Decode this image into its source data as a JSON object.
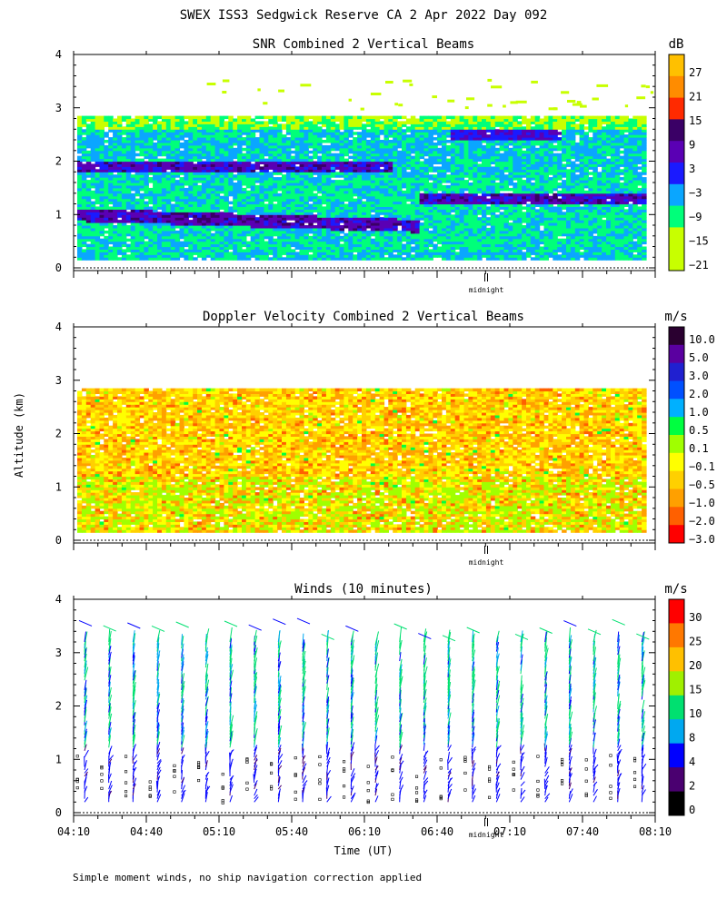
{
  "header": {
    "title": "SWEX ISS3 Sedgwick Reserve CA   2 Apr 2022 Day 092"
  },
  "y_axis_label": "Altitude (km)",
  "x_axis_label": "Time (UT)",
  "footnote": "Simple moment winds, no ship navigation correction applied",
  "midnight_label": "midnight",
  "colors": {
    "dotted_ground": "#000000",
    "frame": "#000000"
  },
  "chart_data": [
    {
      "type": "heatmap",
      "title": "SNR Combined 2 Vertical Beams",
      "ylim": [
        0,
        4
      ],
      "yticks": [
        "0",
        "1",
        "2",
        "3",
        "4"
      ],
      "xlim": [
        "04:10",
        "08:10"
      ],
      "colorbar": {
        "unit": "dB",
        "labels": [
          "27",
          "21",
          "15",
          "9",
          "3",
          "−3",
          "−9",
          "−15",
          "−21"
        ],
        "colors": [
          "#ffc000",
          "#ff8c00",
          "#ff2a00",
          "#3a0066",
          "#5a00b4",
          "#1a1aff",
          "#0aa6ff",
          "#00ff7a",
          "#c8ff00",
          "#c8ff00"
        ]
      },
      "features": {
        "echo_top_km": 2.85,
        "echo_bottom_km": 0.15,
        "strong_layers_km": [
          1.0,
          1.9,
          2.5
        ]
      }
    },
    {
      "type": "heatmap",
      "title": "Doppler Velocity Combined 2 Vertical Beams",
      "ylim": [
        0,
        4
      ],
      "yticks": [
        "0",
        "1",
        "2",
        "3",
        "4"
      ],
      "xlim": [
        "04:10",
        "08:10"
      ],
      "colorbar": {
        "unit": "m/s",
        "labels": [
          "10.0",
          "5.0",
          "3.0",
          "2.0",
          "1.0",
          "0.5",
          "0.1",
          "−0.1",
          "−0.5",
          "−1.0",
          "−2.0",
          "−3.0"
        ],
        "colors": [
          "#2a0030",
          "#5a00a0",
          "#2020d0",
          "#0050ff",
          "#00b0ff",
          "#00ff40",
          "#a0ff00",
          "#ffff00",
          "#ffd000",
          "#ffa000",
          "#ff6000",
          "#ff0000"
        ]
      },
      "features": {
        "echo_top_km": 2.85,
        "echo_bottom_km": 0.15,
        "dominant_range_ms": [
          -1.0,
          -0.1
        ]
      }
    },
    {
      "type": "scatter",
      "title": "Winds (10 minutes)",
      "ylim": [
        0,
        4
      ],
      "yticks": [
        "0",
        "1",
        "2",
        "3",
        "4"
      ],
      "xlim": [
        "04:10",
        "08:10"
      ],
      "xticks": [
        "04:10",
        "04:40",
        "05:10",
        "05:40",
        "06:10",
        "06:40",
        "07:10",
        "07:40",
        "08:10"
      ],
      "profile_interval_min": 10,
      "profile_count": 24,
      "colorbar": {
        "unit": "m/s",
        "labels": [
          "30",
          "25",
          "20",
          "15",
          "10",
          "8",
          "4",
          "2",
          "0"
        ],
        "colors": [
          "#ff0000",
          "#ff7800",
          "#ffc000",
          "#a0f000",
          "#00e070",
          "#00a8f0",
          "#0000ff",
          "#4a0070",
          "#000000"
        ]
      }
    }
  ]
}
